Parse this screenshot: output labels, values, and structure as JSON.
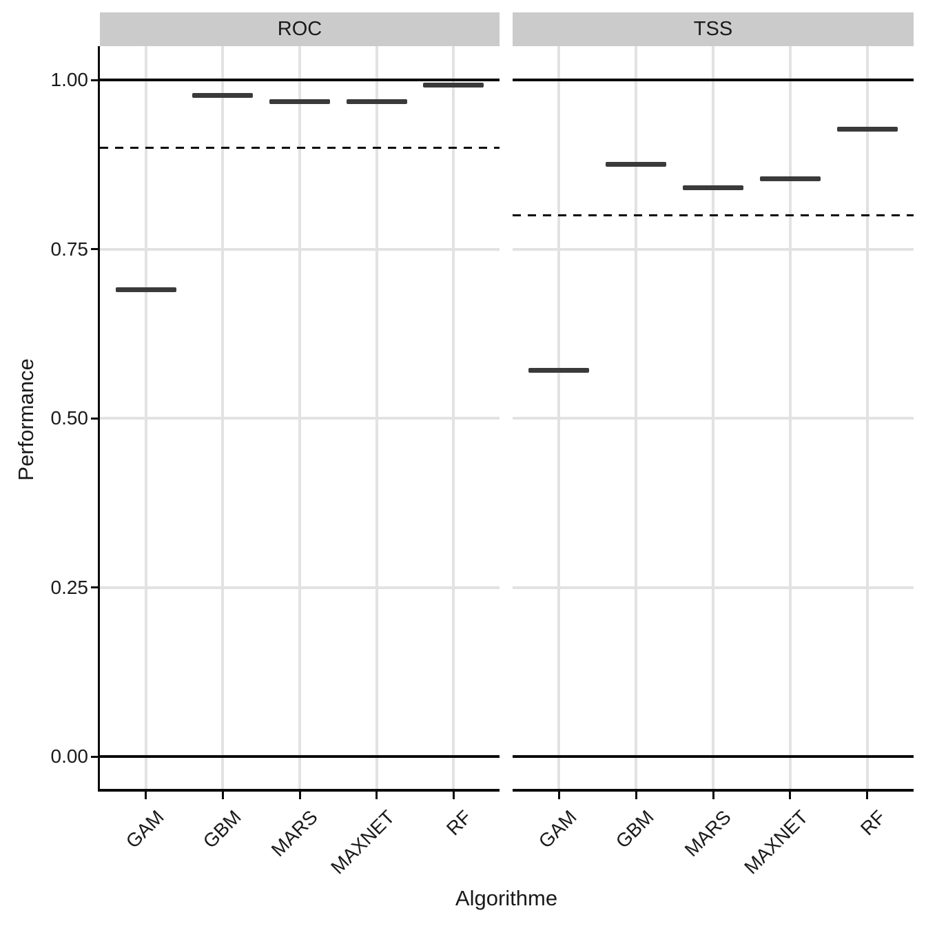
{
  "chart_data": {
    "type": "crossbar",
    "title": "",
    "xlabel": "Algorithme",
    "ylabel": "Performance",
    "categories": [
      "GAM",
      "GBM",
      "MARS",
      "MAXNET",
      "RF"
    ],
    "facets": [
      {
        "label": "ROC",
        "values": [
          0.69,
          0.977,
          0.968,
          0.968,
          0.992
        ],
        "dashed_reference": 0.9
      },
      {
        "label": "TSS",
        "values": [
          0.571,
          0.875,
          0.841,
          0.854,
          0.927
        ],
        "dashed_reference": 0.8
      }
    ],
    "solid_reference_lines": [
      0.0,
      1.0
    ],
    "yticks": [
      "0.00",
      "0.25",
      "0.50",
      "0.75",
      "1.00"
    ],
    "ytick_values": [
      0.0,
      0.25,
      0.5,
      0.75,
      1.0
    ],
    "ylim": [
      -0.05,
      1.05
    ],
    "grid": "on",
    "legend": "none",
    "colors": {
      "mark": "#3A3A3A",
      "strip_background": "#CBCBCB",
      "gridline": "#E2E2E2",
      "axis_and_reference_lines": "#000000",
      "text": "#1A1A1A"
    }
  }
}
